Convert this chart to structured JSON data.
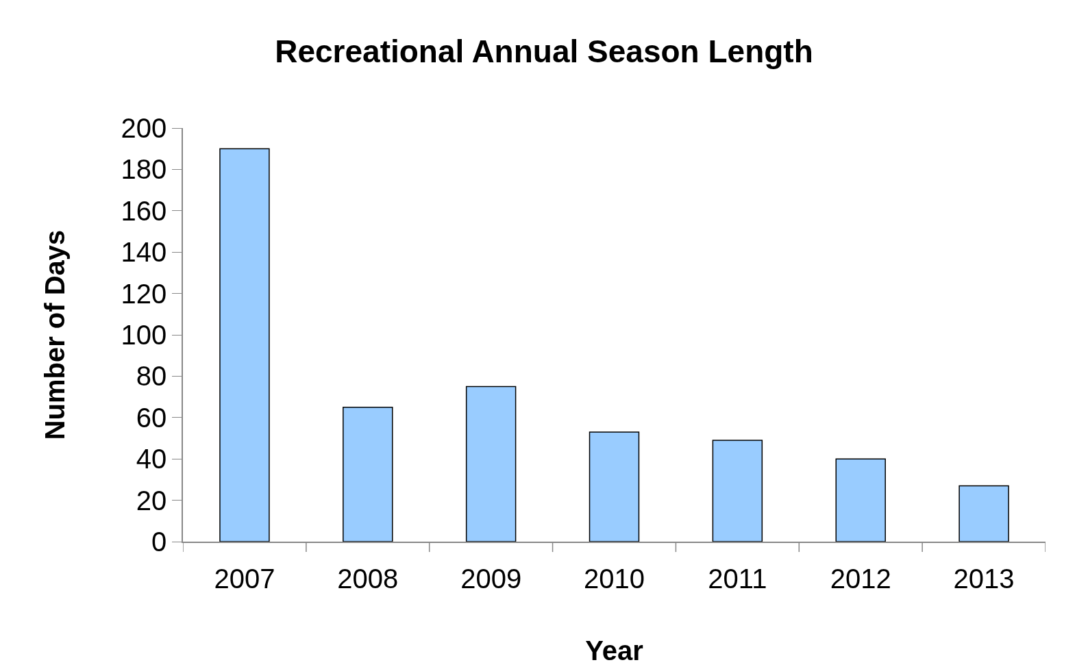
{
  "chart_data": {
    "type": "bar",
    "title": "Recreational Annual Season Length",
    "xlabel": "Year",
    "ylabel": "Number of Days",
    "categories": [
      "2007",
      "2008",
      "2009",
      "2010",
      "2011",
      "2012",
      "2013"
    ],
    "values": [
      190,
      65,
      75,
      53,
      49,
      40,
      27
    ],
    "color": "#99ccff",
    "ylim": [
      0,
      200
    ],
    "yticks": [
      0,
      20,
      40,
      60,
      80,
      100,
      120,
      140,
      160,
      180,
      200
    ],
    "legend": false
  }
}
